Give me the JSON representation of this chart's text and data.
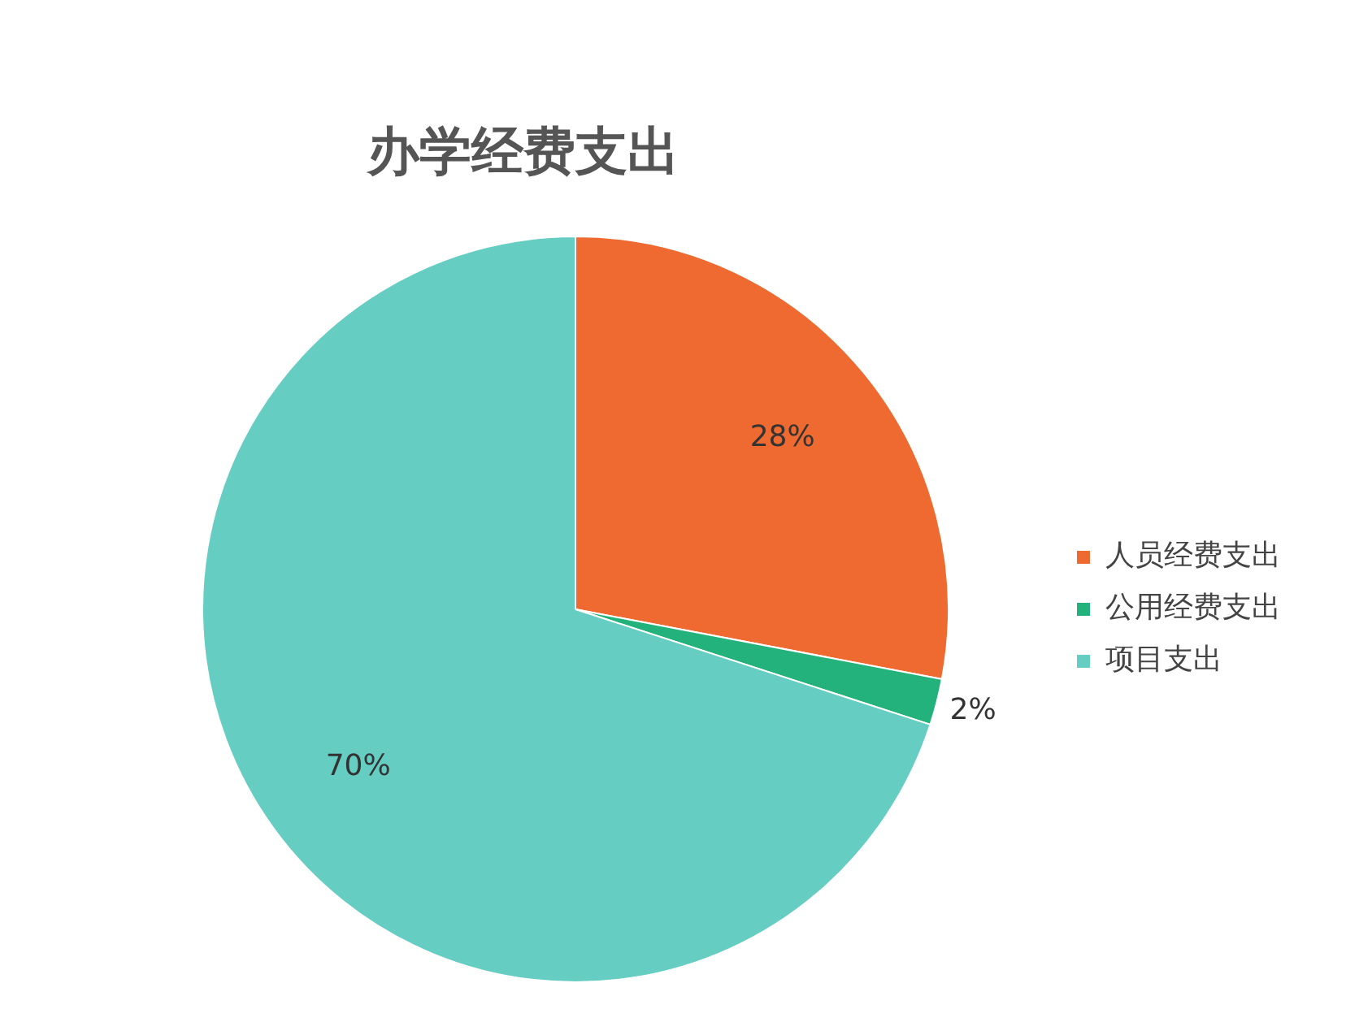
{
  "chart_data": {
    "type": "pie",
    "title": "办学经费支出",
    "categories": [
      "人员经费支出",
      "公用经费支出",
      "项目支出"
    ],
    "values": [
      28,
      2,
      70
    ],
    "value_labels": [
      "28%",
      "2%",
      "70%"
    ],
    "colors": [
      "#ee6a30",
      "#24b27c",
      "#66cdc2"
    ],
    "legend": "right"
  }
}
